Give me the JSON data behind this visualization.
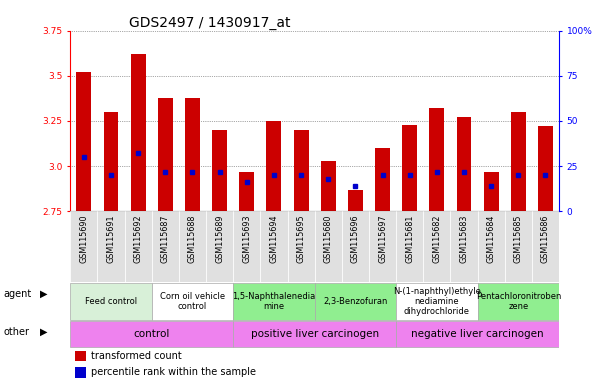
{
  "title": "GDS2497 / 1430917_at",
  "samples": [
    "GSM115690",
    "GSM115691",
    "GSM115692",
    "GSM115687",
    "GSM115688",
    "GSM115689",
    "GSM115693",
    "GSM115694",
    "GSM115695",
    "GSM115680",
    "GSM115696",
    "GSM115697",
    "GSM115681",
    "GSM115682",
    "GSM115683",
    "GSM115684",
    "GSM115685",
    "GSM115686"
  ],
  "transformed_count": [
    3.52,
    3.3,
    3.62,
    3.38,
    3.38,
    3.2,
    2.97,
    3.25,
    3.2,
    3.03,
    2.87,
    3.1,
    3.23,
    3.32,
    3.27,
    2.97,
    3.3,
    3.22
  ],
  "percentile_rank": [
    30,
    20,
    32,
    22,
    22,
    22,
    16,
    20,
    20,
    18,
    14,
    20,
    20,
    22,
    22,
    14,
    20,
    20
  ],
  "ylim": [
    2.75,
    3.75
  ],
  "yticks": [
    2.75,
    3.0,
    3.25,
    3.5,
    3.75
  ],
  "right_yticks": [
    0,
    25,
    50,
    75,
    100
  ],
  "right_ylim": [
    0,
    100
  ],
  "agent_groups": [
    {
      "label": "Feed control",
      "start": 0,
      "end": 3,
      "color": "#d8f0d8"
    },
    {
      "label": "Corn oil vehicle\ncontrol",
      "start": 3,
      "end": 6,
      "color": "#ffffff"
    },
    {
      "label": "1,5-Naphthalenedia\nmine",
      "start": 6,
      "end": 9,
      "color": "#90ee90"
    },
    {
      "label": "2,3-Benzofuran",
      "start": 9,
      "end": 12,
      "color": "#90ee90"
    },
    {
      "label": "N-(1-naphthyl)ethyle\nnediamine\ndihydrochloride",
      "start": 12,
      "end": 15,
      "color": "#ffffff"
    },
    {
      "label": "Pentachloronitroben\nzene",
      "start": 15,
      "end": 18,
      "color": "#90ee90"
    }
  ],
  "other_groups": [
    {
      "label": "control",
      "start": 0,
      "end": 6,
      "color": "#ee82ee"
    },
    {
      "label": "positive liver carcinogen",
      "start": 6,
      "end": 12,
      "color": "#ee82ee"
    },
    {
      "label": "negative liver carcinogen",
      "start": 12,
      "end": 18,
      "color": "#ee82ee"
    }
  ],
  "bar_color": "#cc0000",
  "dot_color": "#0000cc",
  "grid_color": "#555555",
  "tick_bg_color": "#e0e0e0",
  "background_color": "#ffffff",
  "title_fontsize": 10,
  "tick_label_fontsize": 6.5,
  "sample_fontsize": 5.8,
  "agent_fontsize": 6.0,
  "other_fontsize": 7.5,
  "legend_fontsize": 7.0
}
